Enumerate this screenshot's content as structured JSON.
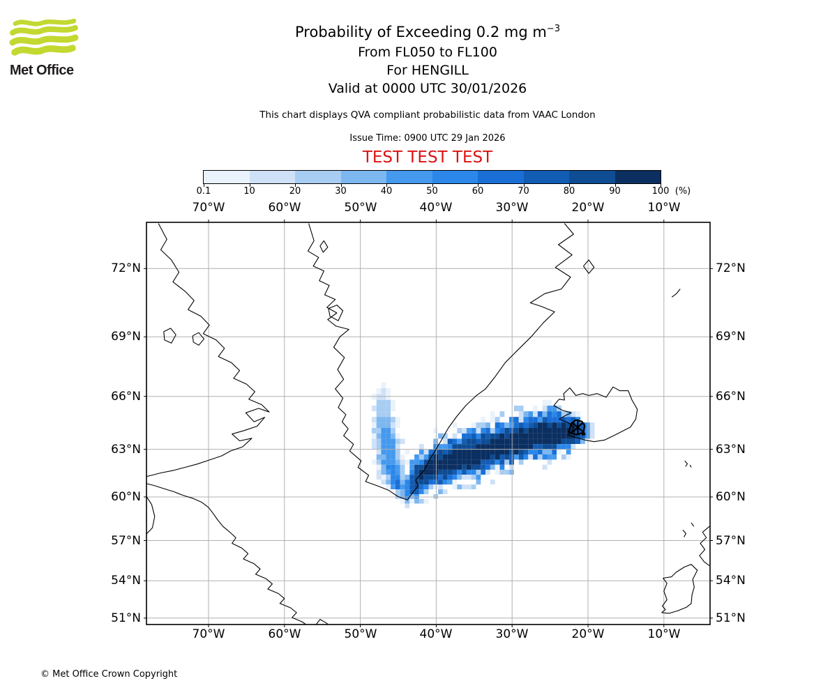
{
  "logo": {
    "brand_text": "Met Office",
    "wave_color": "#c3d830",
    "text_color": "#211d1d"
  },
  "titles": {
    "main": "Probability of Exceeding 0.2 mg m",
    "main_sup": "−3",
    "line2": "From FL050 to FL100",
    "line3": "For HENGILL",
    "line4": "Valid at 0000 UTC 30/01/2026",
    "description": "This chart displays QVA compliant probabilistic data from VAAC London",
    "issue": "Issue Time: 0900 UTC 29 Jan 2026",
    "watermark": "TEST TEST TEST",
    "watermark_color": "#dd1111"
  },
  "colorbar": {
    "tick_labels": [
      "0.1",
      "10",
      "20",
      "30",
      "40",
      "50",
      "60",
      "70",
      "80",
      "90",
      "100"
    ],
    "unit_label": "(%)",
    "colors": [
      "#eaf2fb",
      "#cfe1f7",
      "#a8cdf3",
      "#7db7f0",
      "#4599ee",
      "#2b87e9",
      "#1a6fd6",
      "#125cb4",
      "#0e4c93",
      "#0b2f61"
    ]
  },
  "map": {
    "lon_labels": [
      "70°W",
      "60°W",
      "50°W",
      "40°W",
      "30°W",
      "20°W",
      "10°W"
    ],
    "lat_labels": [
      "72°N",
      "69°N",
      "66°N",
      "63°N",
      "60°N",
      "57°N",
      "54°N",
      "51°N"
    ],
    "lon_values": [
      70,
      60,
      50,
      40,
      30,
      20,
      10
    ],
    "lat_values": [
      72,
      69,
      66,
      63,
      60,
      57,
      54,
      51
    ],
    "grid_color": "#b0b0b0",
    "coast_color": "#000000",
    "source": {
      "name": "HENGILL",
      "lon_w": 21.35,
      "lat_n": 64.3
    },
    "coastlines": {
      "greenland": [
        [
          56.8,
          73.75
        ],
        [
          56.1,
          73.1
        ],
        [
          56.9,
          72.7
        ],
        [
          55.5,
          72.45
        ],
        [
          56.2,
          72.1
        ],
        [
          54.8,
          71.9
        ],
        [
          55.4,
          71.5
        ],
        [
          54.1,
          71.3
        ],
        [
          54.7,
          70.9
        ],
        [
          53.3,
          70.7
        ],
        [
          54.4,
          70.35
        ],
        [
          53.1,
          70.1
        ],
        [
          54.3,
          69.8
        ],
        [
          53.2,
          69.5
        ],
        [
          51.5,
          69.35
        ],
        [
          52.7,
          69.0
        ],
        [
          53.5,
          68.5
        ],
        [
          52.1,
          68.0
        ],
        [
          53.0,
          67.4
        ],
        [
          52.2,
          66.9
        ],
        [
          53.3,
          66.4
        ],
        [
          52.3,
          65.9
        ],
        [
          52.9,
          65.4
        ],
        [
          51.9,
          65.0
        ],
        [
          52.4,
          64.6
        ],
        [
          51.6,
          64.2
        ],
        [
          52.2,
          63.8
        ],
        [
          50.9,
          63.3
        ],
        [
          51.4,
          62.9
        ],
        [
          49.9,
          62.3
        ],
        [
          50.3,
          61.9
        ],
        [
          48.9,
          61.4
        ],
        [
          49.3,
          61.0
        ],
        [
          47.6,
          60.7
        ],
        [
          46.3,
          60.45
        ],
        [
          45.1,
          60.05
        ],
        [
          43.8,
          59.8
        ],
        [
          43.1,
          60.3
        ],
        [
          42.4,
          60.7
        ],
        [
          42.7,
          61.1
        ],
        [
          41.6,
          61.7
        ],
        [
          40.9,
          62.35
        ],
        [
          40.1,
          62.95
        ],
        [
          39.3,
          63.55
        ],
        [
          38.4,
          64.25
        ],
        [
          37.3,
          64.9
        ],
        [
          36.1,
          65.5
        ],
        [
          34.7,
          66.05
        ],
        [
          33.5,
          66.4
        ],
        [
          32.3,
          67.0
        ],
        [
          30.9,
          67.75
        ],
        [
          29.3,
          68.35
        ],
        [
          27.5,
          69.0
        ],
        [
          25.9,
          69.65
        ],
        [
          24.4,
          70.15
        ],
        [
          26.2,
          70.4
        ],
        [
          27.6,
          70.55
        ],
        [
          25.7,
          70.95
        ],
        [
          23.5,
          71.15
        ],
        [
          22.3,
          71.65
        ],
        [
          24.3,
          72.05
        ],
        [
          22.1,
          72.55
        ],
        [
          23.9,
          72.95
        ],
        [
          21.9,
          73.35
        ],
        [
          23.1,
          73.75
        ]
      ],
      "baffin": [
        [
          76.6,
          73.75
        ],
        [
          75.5,
          73.15
        ],
        [
          76.3,
          72.75
        ],
        [
          74.9,
          72.35
        ],
        [
          73.9,
          71.85
        ],
        [
          74.7,
          71.45
        ],
        [
          73.1,
          71.05
        ],
        [
          71.9,
          70.65
        ],
        [
          72.7,
          70.25
        ],
        [
          71.0,
          69.95
        ],
        [
          69.9,
          69.55
        ],
        [
          70.7,
          69.15
        ],
        [
          69.0,
          68.85
        ],
        [
          67.9,
          68.45
        ],
        [
          68.7,
          68.05
        ],
        [
          67.0,
          67.75
        ],
        [
          65.9,
          67.35
        ],
        [
          66.7,
          66.95
        ],
        [
          65.0,
          66.65
        ],
        [
          63.9,
          66.25
        ],
        [
          64.7,
          65.85
        ],
        [
          63.0,
          65.55
        ],
        [
          62.0,
          65.15
        ],
        [
          63.4,
          65.35
        ],
        [
          65.1,
          65.1
        ],
        [
          64.0,
          64.6
        ],
        [
          62.6,
          64.85
        ],
        [
          63.6,
          64.35
        ],
        [
          65.3,
          64.1
        ],
        [
          66.9,
          63.9
        ],
        [
          65.9,
          63.5
        ],
        [
          64.3,
          63.65
        ],
        [
          65.5,
          63.15
        ],
        [
          67.1,
          62.9
        ],
        [
          68.3,
          62.6
        ],
        [
          69.9,
          62.35
        ],
        [
          71.5,
          62.1
        ],
        [
          73.1,
          61.9
        ],
        [
          74.7,
          61.7
        ],
        [
          76.3,
          61.55
        ],
        [
          77.5,
          61.4
        ],
        [
          78.4,
          61.3
        ]
      ],
      "hudson_labrador": [
        [
          78.4,
          60.9
        ],
        [
          77.2,
          60.75
        ],
        [
          75.9,
          60.55
        ],
        [
          74.6,
          60.35
        ],
        [
          73.3,
          60.1
        ],
        [
          72.0,
          59.9
        ],
        [
          70.9,
          59.65
        ],
        [
          70.0,
          59.3
        ],
        [
          69.4,
          58.9
        ],
        [
          68.8,
          58.45
        ],
        [
          68.1,
          58.0
        ],
        [
          67.2,
          57.6
        ],
        [
          66.4,
          57.2
        ],
        [
          66.9,
          56.8
        ],
        [
          65.6,
          56.45
        ],
        [
          64.8,
          56.05
        ],
        [
          65.4,
          55.65
        ],
        [
          64.0,
          55.3
        ],
        [
          63.2,
          54.9
        ],
        [
          63.8,
          54.5
        ],
        [
          62.4,
          54.15
        ],
        [
          61.6,
          53.75
        ],
        [
          62.2,
          53.35
        ],
        [
          60.8,
          53.0
        ],
        [
          60.0,
          52.6
        ],
        [
          60.6,
          52.2
        ],
        [
          59.2,
          51.85
        ],
        [
          58.4,
          51.45
        ],
        [
          59.0,
          51.05
        ],
        [
          57.7,
          50.7
        ],
        [
          57.0,
          50.4
        ]
      ],
      "ungava_arc": [
        [
          78.4,
          60.2
        ],
        [
          77.5,
          59.5
        ],
        [
          77.1,
          58.7
        ],
        [
          77.4,
          57.9
        ],
        [
          78.4,
          57.35
        ]
      ],
      "newfoundland": [
        [
          55.9,
          50.4
        ],
        [
          55.3,
          50.9
        ],
        [
          54.5,
          50.6
        ],
        [
          54.1,
          50.4
        ]
      ],
      "disko": [
        [
          54.2,
          70.3
        ],
        [
          53.1,
          70.45
        ],
        [
          52.3,
          70.2
        ],
        [
          52.9,
          69.75
        ],
        [
          54.0,
          69.95
        ],
        [
          54.2,
          70.3
        ]
      ],
      "upernavik_isle": [
        [
          55.3,
          72.9
        ],
        [
          54.8,
          73.1
        ],
        [
          54.3,
          72.85
        ],
        [
          54.9,
          72.65
        ],
        [
          55.3,
          72.9
        ]
      ],
      "baffin_lake_1": [
        [
          75.9,
          69.25
        ],
        [
          75.0,
          69.4
        ],
        [
          74.3,
          69.1
        ],
        [
          74.9,
          68.7
        ],
        [
          75.8,
          68.85
        ],
        [
          75.9,
          69.25
        ]
      ],
      "baffin_lake_2": [
        [
          72.1,
          69.05
        ],
        [
          71.3,
          69.2
        ],
        [
          70.6,
          68.9
        ],
        [
          71.3,
          68.6
        ],
        [
          72.0,
          68.75
        ],
        [
          72.1,
          69.05
        ]
      ],
      "ne_greenland_isle": [
        [
          20.6,
          72.1
        ],
        [
          19.9,
          72.35
        ],
        [
          19.2,
          72.05
        ],
        [
          19.9,
          71.8
        ],
        [
          20.6,
          72.1
        ]
      ],
      "iceland": [
        [
          24.5,
          65.5
        ],
        [
          23.8,
          65.85
        ],
        [
          23.1,
          65.8
        ],
        [
          23.2,
          66.15
        ],
        [
          22.4,
          66.45
        ],
        [
          21.6,
          66.05
        ],
        [
          20.7,
          66.15
        ],
        [
          19.9,
          66.05
        ],
        [
          18.8,
          66.15
        ],
        [
          17.6,
          65.95
        ],
        [
          16.7,
          66.5
        ],
        [
          15.8,
          66.3
        ],
        [
          14.7,
          66.3
        ],
        [
          14.2,
          65.8
        ],
        [
          13.5,
          65.3
        ],
        [
          13.7,
          64.75
        ],
        [
          14.4,
          64.3
        ],
        [
          15.3,
          64.1
        ],
        [
          16.4,
          63.85
        ],
        [
          17.8,
          63.55
        ],
        [
          19.2,
          63.45
        ],
        [
          20.4,
          63.55
        ],
        [
          21.6,
          63.7
        ],
        [
          22.7,
          63.85
        ],
        [
          22.1,
          64.05
        ],
        [
          21.9,
          64.3
        ],
        [
          22.6,
          64.55
        ],
        [
          23.8,
          64.75
        ],
        [
          23.0,
          64.95
        ],
        [
          22.2,
          65.1
        ],
        [
          23.4,
          65.25
        ],
        [
          24.5,
          65.5
        ]
      ],
      "ireland": [
        [
          10.3,
          51.45
        ],
        [
          9.8,
          51.7
        ],
        [
          10.2,
          52.0
        ],
        [
          9.6,
          52.5
        ],
        [
          10.0,
          53.2
        ],
        [
          9.6,
          53.8
        ],
        [
          10.1,
          54.2
        ],
        [
          9.0,
          54.3
        ],
        [
          8.4,
          54.65
        ],
        [
          7.3,
          55.05
        ],
        [
          6.4,
          55.25
        ],
        [
          5.6,
          54.8
        ],
        [
          6.2,
          54.1
        ],
        [
          6.0,
          53.5
        ],
        [
          6.3,
          52.9
        ],
        [
          6.4,
          52.2
        ],
        [
          7.0,
          51.9
        ],
        [
          8.2,
          51.6
        ],
        [
          9.3,
          51.4
        ],
        [
          10.3,
          51.45
        ]
      ],
      "scotland": [
        [
          4.0,
          58.0
        ],
        [
          4.9,
          57.6
        ],
        [
          4.4,
          57.2
        ],
        [
          5.2,
          56.8
        ],
        [
          4.6,
          56.35
        ],
        [
          5.3,
          55.9
        ],
        [
          4.7,
          55.45
        ],
        [
          4.0,
          55.15
        ]
      ],
      "hebrides_1": [
        [
          7.5,
          57.75
        ],
        [
          7.1,
          57.5
        ],
        [
          7.35,
          57.25
        ]
      ],
      "hebrides_2": [
        [
          6.4,
          58.25
        ],
        [
          6.05,
          58.0
        ]
      ],
      "faroes_1": [
        [
          7.25,
          62.3
        ],
        [
          6.9,
          62.12
        ],
        [
          7.15,
          61.95
        ]
      ],
      "faroes_2": [
        [
          6.55,
          62.05
        ],
        [
          6.4,
          61.9
        ]
      ],
      "jan_mayen": [
        [
          8.95,
          70.8
        ],
        [
          8.35,
          70.95
        ],
        [
          7.85,
          71.15
        ]
      ]
    }
  },
  "chart_data": {
    "type": "heatmap",
    "title": "Probability of Exceeding 0.2 mg m−3",
    "subtitle": "From FL050 to FL100, For HENGILL, Valid at 0000 UTC 30/01/2026",
    "units": "%",
    "thresholds": [
      0.1,
      10,
      20,
      30,
      40,
      50,
      60,
      70,
      80,
      90
    ],
    "palette": [
      "#eaf2fb",
      "#cfe1f7",
      "#a8cdf3",
      "#7db7f0",
      "#4599ee",
      "#2b87e9",
      "#1a6fd6",
      "#125cb4",
      "#0e4c93",
      "#0b2f61"
    ],
    "xlabel_ticks_deg_w": [
      70,
      60,
      50,
      40,
      30,
      20,
      10
    ],
    "ylabel_ticks_deg_n": [
      72,
      69,
      66,
      63,
      60,
      57,
      54,
      51
    ],
    "extent": {
      "lon_w": [
        78.2,
        3.9
      ],
      "lat_n": [
        50.4,
        73.75
      ]
    },
    "grid_dlon": 0.625,
    "grid_dlat": 0.3125,
    "plume_main_stations": [
      [
        19.0,
        64.1,
        0.25,
        0,
        1
      ],
      [
        19.6,
        64.1,
        0.45,
        0,
        2
      ],
      [
        20.6,
        64.1,
        0.75,
        0.1,
        7
      ],
      [
        21.6,
        64.05,
        1.05,
        0.3,
        9
      ],
      [
        23.5,
        63.95,
        1.4,
        0.45,
        9
      ],
      [
        26.7,
        63.8,
        1.55,
        0.5,
        9
      ],
      [
        30.0,
        63.4,
        1.6,
        0.55,
        9
      ],
      [
        34.3,
        62.8,
        1.65,
        0.55,
        9
      ],
      [
        38.0,
        62.3,
        1.7,
        0.5,
        9
      ],
      [
        40.5,
        61.9,
        1.65,
        0.45,
        9
      ],
      [
        42.3,
        61.35,
        1.55,
        0.3,
        9
      ],
      [
        43.5,
        60.75,
        1.3,
        0.1,
        7
      ],
      [
        44.4,
        60.35,
        0.8,
        0,
        4
      ],
      [
        45.1,
        60.1,
        0.45,
        0,
        2
      ]
    ],
    "plume_arm_stations": [
      [
        60.4,
        44.8,
        1.6,
        0,
        6
      ],
      [
        61.2,
        45.4,
        2.0,
        0,
        6
      ],
      [
        62.2,
        46.0,
        2.1,
        0,
        5
      ],
      [
        63.2,
        46.4,
        2.0,
        0,
        4
      ],
      [
        64.2,
        46.7,
        1.8,
        0,
        4
      ],
      [
        65.0,
        46.9,
        1.5,
        0,
        3
      ],
      [
        65.8,
        47.0,
        1.1,
        0,
        2
      ],
      [
        66.4,
        47.0,
        0.6,
        0,
        1
      ],
      [
        66.8,
        47.0,
        0.3,
        0,
        0
      ]
    ]
  },
  "footer": {
    "copyright": "© Met Office Crown Copyright"
  }
}
